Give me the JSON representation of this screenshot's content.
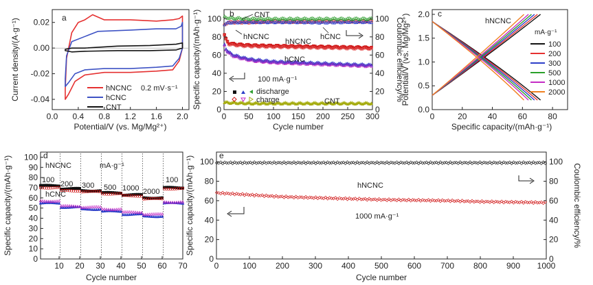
{
  "figure": {
    "panels": {
      "a": {
        "letter": "a",
        "xlabel": "Potential/V (vs. Mg/Mg²⁺)",
        "ylabel": "Current density/(A·g⁻¹)",
        "xticks": [
          "0.0",
          "0.4",
          "0.8",
          "1.2",
          "1.6",
          "2.0"
        ],
        "yticks": [
          "0.02",
          "0.00",
          "-0.02",
          "-0.04"
        ],
        "legend": [
          "hNCNC",
          "hCNC",
          "CNT"
        ],
        "annotation": "0.2 mV·s⁻¹"
      },
      "b": {
        "letter": "b",
        "xlabel": "Cycle number",
        "ylabel_left": "Specific capacity/(mAh·g⁻¹)",
        "ylabel_right": "Coulombic efficiency/%",
        "xticks": [
          "0",
          "50",
          "100",
          "150",
          "200",
          "250",
          "300"
        ],
        "yticks_left": [
          "0",
          "20",
          "40",
          "60",
          "80",
          "100"
        ],
        "yticks_right": [
          "0",
          "20",
          "40",
          "60",
          "80",
          "100"
        ],
        "labels": {
          "cnt_top": "CNT",
          "hncnc_left": "hNCNC",
          "hncnc_mid": "hNCNC",
          "hcnc_right": "hCNC",
          "hcnc_mid": "hCNC",
          "rate": "100 mA·g⁻¹",
          "cnt_bottom": "CNT",
          "discharge": "discharge",
          "charge": "charge"
        }
      },
      "c": {
        "letter": "c",
        "title": "hNCNC",
        "xlabel": "Specific capacity/(mAh·g⁻¹)",
        "ylabel": "Potential/V (vs. Mg/Mg²⁺)",
        "xticks": [
          "0",
          "20",
          "40",
          "60",
          "80"
        ],
        "yticks": [
          "0.0",
          "0.5",
          "1.0",
          "1.5",
          "2.0"
        ],
        "legend_title": "mA·g⁻¹",
        "legend": [
          "100",
          "200",
          "300",
          "500",
          "1000",
          "2000"
        ]
      },
      "d": {
        "letter": "d",
        "xlabel": "Cycle number",
        "ylabel": "Specific capacity/(mAh·g⁻¹)",
        "xticks": [
          "10",
          "20",
          "30",
          "40",
          "50",
          "60",
          "70"
        ],
        "yticks": [
          "0",
          "10",
          "20",
          "30",
          "40",
          "50",
          "60",
          "70",
          "80",
          "90",
          "100"
        ],
        "labels": {
          "hncnc": "hNCNC",
          "unit": "mA·g⁻¹",
          "hcnc": "hCNC",
          "r100a": "100",
          "r200": "200",
          "r300": "300",
          "r500": "500",
          "r1000": "1000",
          "r2000": "2000",
          "r100b": "100"
        }
      },
      "e": {
        "letter": "e",
        "xlabel": "Cycle number",
        "ylabel_left": "Specific capacity/(mAh·g⁻¹)",
        "ylabel_right": "Coulombic efficiency/%",
        "xticks": [
          "0",
          "100",
          "200",
          "300",
          "400",
          "500",
          "600",
          "700",
          "800",
          "900",
          "1000"
        ],
        "yticks_left": [
          "0",
          "20",
          "40",
          "60",
          "80",
          "100"
        ],
        "yticks_right": [
          "0",
          "20",
          "40",
          "60",
          "80",
          "100"
        ],
        "labels": {
          "hncnc": "hNCNC",
          "rate": "1000 mA·g⁻¹"
        }
      }
    }
  },
  "chart_data": [
    {
      "panel": "a",
      "type": "line",
      "xlabel": "Potential/V (vs. Mg/Mg²⁺)",
      "ylabel": "Current density/(A·g⁻¹)",
      "xlim": [
        0.0,
        2.1
      ],
      "ylim": [
        -0.048,
        0.03
      ],
      "series": [
        {
          "name": "hNCNC",
          "color": "#e53030",
          "x": [
            0.2,
            0.22,
            0.3,
            0.4,
            0.5,
            0.62,
            0.8,
            1.2,
            1.6,
            1.85,
            1.95,
            2.0,
            2.0,
            1.95,
            1.85,
            1.6,
            1.2,
            0.8,
            0.5,
            0.35,
            0.25,
            0.2
          ],
          "y": [
            -0.032,
            -0.008,
            0.012,
            0.02,
            0.022,
            0.026,
            0.022,
            0.022,
            0.021,
            0.022,
            0.023,
            0.025,
            0.0,
            -0.01,
            -0.017,
            -0.018,
            -0.019,
            -0.019,
            -0.021,
            -0.026,
            -0.036,
            -0.04
          ]
        },
        {
          "name": "hCNC",
          "color": "#3d52c4",
          "x": [
            0.2,
            0.22,
            0.3,
            0.5,
            0.7,
            1.2,
            1.6,
            1.9,
            1.98,
            2.0,
            2.0,
            1.95,
            1.85,
            1.6,
            1.2,
            0.8,
            0.5,
            0.35,
            0.25,
            0.2
          ],
          "y": [
            -0.024,
            -0.006,
            0.005,
            0.009,
            0.013,
            0.014,
            0.015,
            0.015,
            0.017,
            0.02,
            0.0,
            -0.008,
            -0.014,
            -0.015,
            -0.016,
            -0.016,
            -0.017,
            -0.02,
            -0.027,
            -0.03
          ]
        },
        {
          "name": "CNT",
          "color": "#111111",
          "x": [
            0.2,
            0.3,
            0.5,
            1.0,
            1.5,
            1.9,
            2.0,
            2.0,
            1.9,
            1.5,
            1.0,
            0.5,
            0.3,
            0.2
          ],
          "y": [
            -0.001,
            0.0,
            0.0,
            0.0015,
            0.002,
            0.003,
            0.004,
            0.0,
            -0.0015,
            -0.002,
            -0.002,
            -0.0025,
            -0.003,
            -0.002
          ]
        }
      ],
      "annotations": [
        "0.2 mV·s⁻¹"
      ]
    },
    {
      "panel": "b",
      "type": "scatter",
      "xlabel": "Cycle number",
      "ylabel": "Specific capacity/(mAh·g⁻¹)",
      "ylabel_right": "Coulombic efficiency/%",
      "xlim": [
        0,
        300
      ],
      "ylim": [
        0,
        110
      ],
      "ylim_right": [
        0,
        110
      ],
      "series": [
        {
          "name": "hNCNC",
          "axis": "left",
          "marker": "square",
          "color": "#d11a1a",
          "x": [
            1,
            5,
            10,
            20,
            40,
            60,
            100,
            150,
            200,
            250,
            300
          ],
          "y": [
            82,
            76,
            73,
            72,
            71,
            70.5,
            70,
            69.5,
            69,
            68.5,
            68
          ]
        },
        {
          "name": "hCNC",
          "axis": "left",
          "marker": "triangle",
          "color": "#2b3dc8",
          "x": [
            1,
            5,
            10,
            20,
            40,
            60,
            100,
            150,
            200,
            250,
            300
          ],
          "y": [
            72,
            66,
            63,
            60,
            57,
            55,
            53,
            52,
            51,
            50,
            49
          ]
        },
        {
          "name": "CNT",
          "axis": "left",
          "marker": "triangle",
          "color": "#a6ad12",
          "x": [
            1,
            50,
            100,
            150,
            200,
            250,
            300
          ],
          "y": [
            8,
            7,
            7,
            7,
            7,
            7,
            7
          ]
        },
        {
          "name": "hNCNC",
          "axis": "right",
          "marker": "circle",
          "color": "#d11a1a",
          "x": [
            1,
            5,
            10,
            50,
            100,
            150,
            200,
            250,
            300
          ],
          "y": [
            93,
            95,
            96,
            96,
            97,
            96.5,
            97,
            97,
            97
          ]
        },
        {
          "name": "hCNC",
          "axis": "right",
          "marker": "triangle",
          "color": "#2b3dc8",
          "x": [
            1,
            10,
            50,
            100,
            150,
            200,
            250,
            300
          ],
          "y": [
            94,
            96,
            96.5,
            96.5,
            96.5,
            96,
            96.5,
            96.5
          ]
        },
        {
          "name": "CNT",
          "axis": "right",
          "marker": "triangle",
          "color": "#2e9e2e",
          "x": [
            1,
            10,
            50,
            100,
            150,
            200,
            250,
            300
          ],
          "y": [
            102,
            101,
            100,
            100,
            100,
            100,
            100,
            100
          ]
        }
      ],
      "legend": [
        "discharge",
        "charge"
      ],
      "annotations": [
        "100 mA·g⁻¹"
      ]
    },
    {
      "panel": "c",
      "type": "line",
      "title": "hNCNC",
      "xlabel": "Specific capacity/(mAh·g⁻¹)",
      "ylabel": "Potential/V (vs. Mg/Mg²⁺)",
      "xlim": [
        0,
        90
      ],
      "ylim": [
        0.0,
        2.1
      ],
      "series": [
        {
          "name": "100",
          "color": "#111111",
          "charge_end": 72,
          "discharge_end": 72
        },
        {
          "name": "200",
          "color": "#e53030",
          "charge_end": 70,
          "discharge_end": 70
        },
        {
          "name": "300",
          "color": "#2b3dc8",
          "charge_end": 68,
          "discharge_end": 68
        },
        {
          "name": "500",
          "color": "#2aa02a",
          "charge_end": 66,
          "discharge_end": 66
        },
        {
          "name": "1000",
          "color": "#c42ac4",
          "charge_end": 64,
          "discharge_end": 64
        },
        {
          "name": "2000",
          "color": "#f08020",
          "charge_end": 61,
          "discharge_end": 61
        }
      ],
      "potential_range": [
        0.2,
        2.0
      ],
      "start_potential": [
        1.85,
        0.3
      ]
    },
    {
      "panel": "d",
      "type": "scatter",
      "xlabel": "Cycle number",
      "ylabel": "Specific capacity/(mAh·g⁻¹)",
      "xlim": [
        1,
        70
      ],
      "ylim": [
        0,
        105
      ],
      "rate_steps_mA_g": [
        100,
        200,
        300,
        500,
        1000,
        2000,
        100
      ],
      "series": [
        {
          "name": "hNCNC discharge",
          "marker": "square",
          "color": "#111111",
          "values_per_step": [
            72,
            69,
            67,
            65,
            63,
            60,
            70
          ]
        },
        {
          "name": "hNCNC charge",
          "marker": "circle",
          "color": "#d11a1a",
          "values_per_step": [
            70,
            67,
            66,
            64,
            62,
            59,
            69
          ]
        },
        {
          "name": "hCNC discharge",
          "marker": "triangle",
          "color": "#2b3dc8",
          "values_per_step": [
            55,
            51,
            49,
            47,
            44,
            42,
            55
          ]
        },
        {
          "name": "hCNC charge",
          "marker": "triangle",
          "color": "#c42ac4",
          "values_per_step": [
            57,
            52,
            51,
            49,
            46,
            44,
            56
          ]
        }
      ]
    },
    {
      "panel": "e",
      "type": "scatter",
      "xlabel": "Cycle number",
      "ylabel": "Specific capacity/(mAh·g⁻¹)",
      "ylabel_right": "Coulombic efficiency/%",
      "xlim": [
        0,
        1000
      ],
      "ylim": [
        0,
        110
      ],
      "ylim_right": [
        0,
        110
      ],
      "series": [
        {
          "name": "hNCNC capacity",
          "axis": "left",
          "marker": "diamond",
          "color": "#d11a1a",
          "x": [
            1,
            100,
            200,
            300,
            400,
            500,
            600,
            700,
            800,
            900,
            1000
          ],
          "y": [
            68,
            66,
            64,
            63,
            62,
            61,
            60.5,
            60,
            59,
            58.5,
            58
          ]
        },
        {
          "name": "hNCNC efficiency",
          "axis": "right",
          "marker": "diamond",
          "color": "#222222",
          "x": [
            1,
            100,
            200,
            300,
            400,
            500,
            600,
            700,
            800,
            900,
            1000
          ],
          "y": [
            99,
            99,
            99,
            99,
            99,
            99,
            99,
            99,
            99,
            99,
            99
          ]
        }
      ],
      "annotations": [
        "1000 mA·g⁻¹"
      ]
    }
  ]
}
